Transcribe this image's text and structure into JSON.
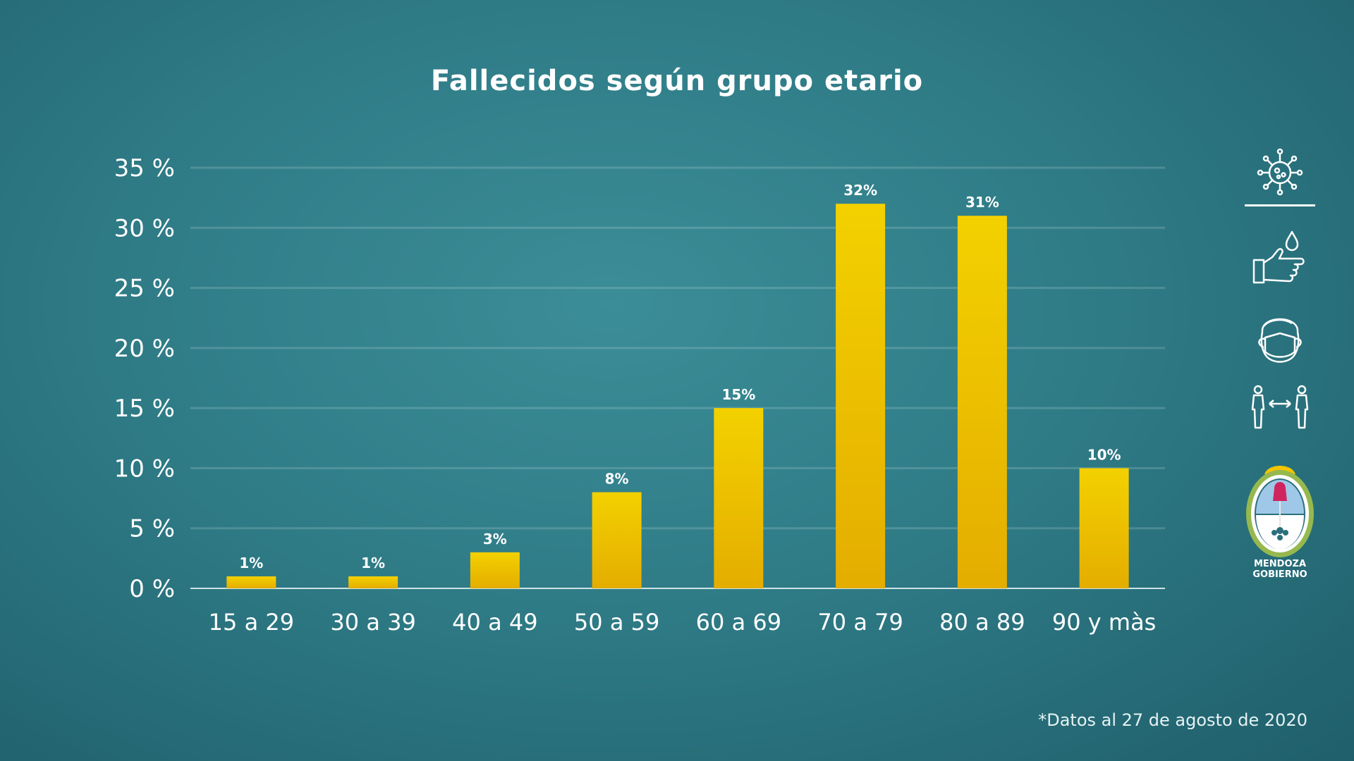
{
  "chart_data": {
    "type": "bar",
    "title": "Fallecidos según grupo etario",
    "categories": [
      "15 a 29",
      "30 a 39",
      "40 a 49",
      "50 a 59",
      "60 a 69",
      "70 a 79",
      "80 a 89",
      "90 y màs"
    ],
    "values": [
      1,
      1,
      3,
      8,
      15,
      32,
      31,
      10
    ],
    "value_labels": [
      "1%",
      "1%",
      "3%",
      "8%",
      "15%",
      "32%",
      "31%",
      "10%"
    ],
    "y_ticks": [
      "0 %",
      "5 %",
      "10 %",
      "15 %",
      "20 %",
      "25 %",
      "30 %",
      "35 %"
    ],
    "ylim": [
      0,
      35
    ],
    "grid": true,
    "bar_color": "#f0c800",
    "legend": "none"
  },
  "footnote": "*Datos al 27 de agosto de 2020",
  "side_icons": [
    "virus-icon",
    "handwash-icon",
    "face-mask-icon",
    "social-distance-icon"
  ],
  "logo": {
    "name": "MENDOZA",
    "subtitle": "GOBIERNO"
  }
}
